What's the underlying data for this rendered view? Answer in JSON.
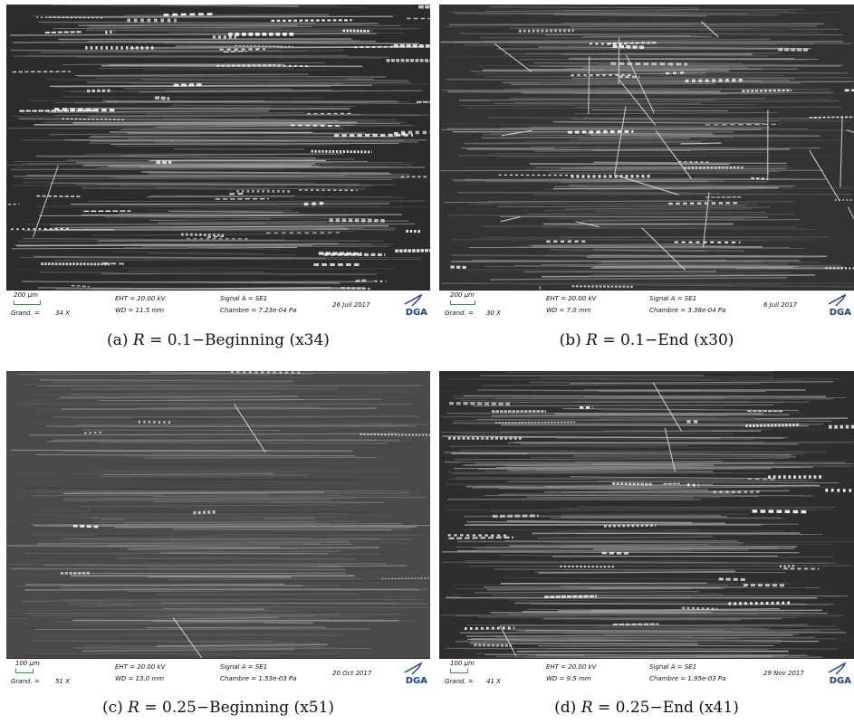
{
  "panels": [
    {
      "id": "a",
      "caption": {
        "prefix": "(a) ",
        "var": "R",
        "rest": " = 0.1−Beginning (x34)"
      },
      "databar": {
        "scale": "200 µm",
        "grand": "Grand. =",
        "mag": "34 X",
        "eht": "EHT = 20.00 kV",
        "wd": "WD = 11.5 mm",
        "signal": "Signal A = SE1",
        "chambre": "Chambre = 7.23e-04 Pa",
        "date": "26 Juil 2017",
        "logo": "DGA"
      }
    },
    {
      "id": "b",
      "caption": {
        "prefix": "(b) ",
        "var": "R",
        "rest": " = 0.1−End (x30)"
      },
      "databar": {
        "scale": "200 µm",
        "grand": "Grand. =",
        "mag": "30 X",
        "eht": "EHT = 20.00 kV",
        "wd": "WD = 7.0 mm",
        "signal": "Signal A = SE1",
        "chambre": "Chambre = 3.38e-04 Pa",
        "date": "6 Juil 2017",
        "logo": "DGA"
      }
    },
    {
      "id": "c",
      "caption": {
        "prefix": "(c) ",
        "var": "R",
        "rest": " = 0.25−Beginning (x51)"
      },
      "databar": {
        "scale": "100 µm",
        "grand": "Grand. =",
        "mag": "51 X",
        "eht": "EHT = 20.00 kV",
        "wd": "WD = 13.0 mm",
        "signal": "Signal A = SE1",
        "chambre": "Chambre = 1.53e-03 Pa",
        "date": "20 Oct 2017",
        "logo": "DGA"
      }
    },
    {
      "id": "d",
      "caption": {
        "prefix": "(d) ",
        "var": "R",
        "rest": " = 0.25−End (x41)"
      },
      "databar": {
        "scale": "100 µm",
        "grand": "Grand. =",
        "mag": "41 X",
        "eht": "EHT = 20.00 kV",
        "wd": "WD = 9.5 mm",
        "signal": "Signal A = SE1",
        "chambre": "Chambre = 1.95e-03 Pa",
        "date": "29 Nov 2017",
        "logo": "DGA"
      }
    }
  ],
  "colors": {
    "scalebar": "#2a9d2a",
    "logo": "#1d3f8c",
    "image_base": "#2e2e2e"
  }
}
